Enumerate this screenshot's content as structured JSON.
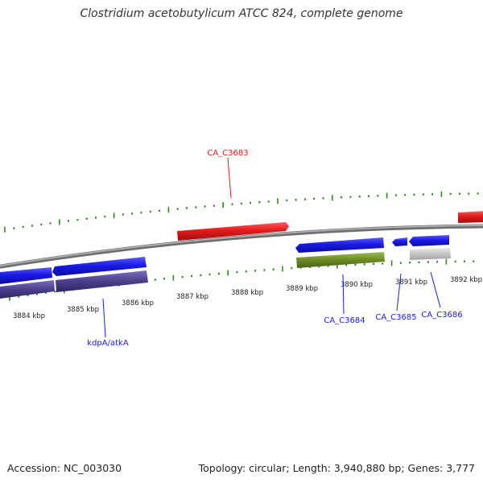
{
  "map": {
    "title": "Clostridium acetobutylicum ATCC 824, complete genome",
    "accession": "Accession: NC_003030",
    "summary": "Topology: circular; Length: 3,940,880 bp; Genes: 3,777",
    "ruler_labels": [
      "3884 kbp",
      "3885 kbp",
      "3886 kbp",
      "3887 kbp",
      "3888 kbp",
      "3889 kbp",
      "3890 kbp",
      "3891 kbp",
      "3892 kbp"
    ],
    "genes": [
      {
        "label": "CA_C3683",
        "color": "#e11b1b",
        "strand": "+"
      },
      {
        "label": "kdpA/atkA",
        "color": "#1a1ae6",
        "strand": "-"
      },
      {
        "label": "CA_C3684",
        "color": "#1a1ae6",
        "strand": "-"
      },
      {
        "label": "CA_C3685",
        "color": "#1a1ae6",
        "strand": "-"
      },
      {
        "label": "CA_C3686",
        "color": "#1a1ae6",
        "strand": "-"
      }
    ],
    "track_colors": {
      "forward_cds": "#e11b1b",
      "reverse_cds": "#1a1ae6",
      "cog_purple": "#4b3f8c",
      "cog_green": "#6b8a24",
      "cog_grey": "#c4c4c4",
      "ticks": "#2f8a1c",
      "backbone": "#8a8a8a"
    }
  }
}
